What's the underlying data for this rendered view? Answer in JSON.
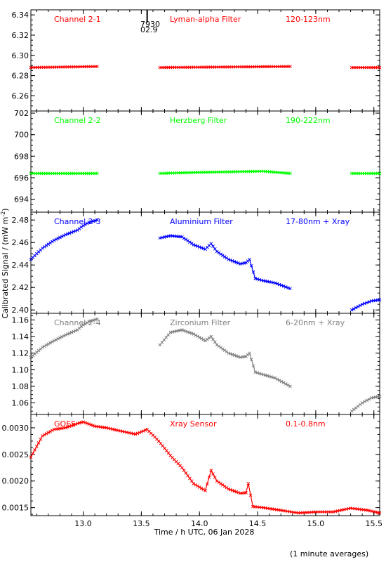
{
  "colors": {
    "red": "#ff0000",
    "green": "#00ff00",
    "blue": "#0000ff",
    "gray": "#808080",
    "axis": "#000000"
  },
  "figure": {
    "xlabel": "Time / h UTC, 06 Jan 2028",
    "ylabel": "Calibrated Signal / (mW m",
    "ylabel_sup": "-2",
    "ylabel_tail": ")",
    "footnote": "(1 minute averages)",
    "marker_labels": [
      "7930",
      "02.9"
    ]
  },
  "chart_data": {
    "type": "scatter",
    "xlim": [
      12.55,
      15.55
    ],
    "xticks": [
      13.0,
      13.5,
      14.0,
      14.5,
      15.0,
      15.5
    ],
    "xtick_labels": [
      "13.0",
      "13.5",
      "14.0",
      "14.5",
      "15.0",
      "15.5"
    ],
    "marker_x": 13.55,
    "panels": [
      {
        "name": "Channel 2-1",
        "filter": "Lyman-alpha Filter",
        "band": "120-123nm",
        "color": "red",
        "ylim": [
          6.245,
          6.345
        ],
        "yticks": [
          6.26,
          6.28,
          6.3,
          6.32,
          6.34
        ],
        "ytick_labels": [
          "6.26",
          "6.28",
          "6.30",
          "6.32",
          "6.34"
        ],
        "series": [
          {
            "x": [
              12.55,
              13.12
            ],
            "y": [
              6.288,
              6.289
            ]
          },
          {
            "x": [
              13.66,
              14.78
            ],
            "y": [
              6.288,
              6.289
            ]
          },
          {
            "x": [
              15.31,
              15.55
            ],
            "y": [
              6.288,
              6.288
            ]
          }
        ]
      },
      {
        "name": "Channel 2-2",
        "filter": "Herzberg Filter",
        "band": "190-222nm",
        "color": "green",
        "ylim": [
          692.8,
          702.2
        ],
        "yticks": [
          694,
          696,
          698,
          700,
          702
        ],
        "ytick_labels": [
          "694",
          "696",
          "698",
          "700",
          "702"
        ],
        "series": [
          {
            "x": [
              12.55,
              13.12
            ],
            "y": [
              696.4,
              696.4
            ]
          },
          {
            "x": [
              13.66,
              14.0,
              14.55,
              14.78
            ],
            "y": [
              696.4,
              696.5,
              696.6,
              696.4
            ]
          },
          {
            "x": [
              15.31,
              15.55
            ],
            "y": [
              696.4,
              696.4
            ]
          }
        ]
      },
      {
        "name": "Channel 2-3",
        "filter": "Aluminium Filter",
        "band": "17-80nm + Xray",
        "color": "blue",
        "ylim": [
          2.397,
          2.487
        ],
        "yticks": [
          2.4,
          2.42,
          2.44,
          2.46,
          2.48
        ],
        "ytick_labels": [
          "2.40",
          "2.42",
          "2.44",
          "2.46",
          "2.48"
        ],
        "series": [
          {
            "x": [
              12.55,
              12.65,
              12.75,
              12.85,
              12.95,
              13.0,
              13.05,
              13.12
            ],
            "y": [
              2.445,
              2.455,
              2.462,
              2.467,
              2.471,
              2.475,
              2.478,
              2.48
            ]
          },
          {
            "x": [
              13.66,
              13.75,
              13.85,
              13.95,
              14.05,
              14.1,
              14.15,
              14.25,
              14.35,
              14.4,
              14.43,
              14.48,
              14.55,
              14.65,
              14.78
            ],
            "y": [
              2.464,
              2.466,
              2.465,
              2.458,
              2.454,
              2.459,
              2.452,
              2.445,
              2.441,
              2.442,
              2.445,
              2.428,
              2.426,
              2.424,
              2.419
            ]
          },
          {
            "x": [
              15.31,
              15.4,
              15.48,
              15.55
            ],
            "y": [
              2.4,
              2.405,
              2.408,
              2.409
            ]
          }
        ]
      },
      {
        "name": "Channel 2-4",
        "filter": "Zirconium Filter",
        "band": "6-20nm + Xray",
        "color": "gray",
        "ylim": [
          1.046,
          1.168
        ],
        "yticks": [
          1.06,
          1.08,
          1.1,
          1.12,
          1.14,
          1.16
        ],
        "ytick_labels": [
          "1.06",
          "1.08",
          "1.10",
          "1.12",
          "1.14",
          "1.16"
        ],
        "series": [
          {
            "x": [
              12.55,
              12.65,
              12.75,
              12.85,
              12.95,
              13.0,
              13.05,
              13.12
            ],
            "y": [
              1.115,
              1.127,
              1.135,
              1.142,
              1.148,
              1.154,
              1.158,
              1.161
            ]
          },
          {
            "x": [
              13.66,
              13.75,
              13.85,
              13.95,
              14.05,
              14.1,
              14.15,
              14.25,
              14.35,
              14.4,
              14.43,
              14.48,
              14.55,
              14.65,
              14.78
            ],
            "y": [
              1.13,
              1.145,
              1.148,
              1.143,
              1.135,
              1.14,
              1.13,
              1.12,
              1.115,
              1.116,
              1.12,
              1.097,
              1.094,
              1.09,
              1.08
            ]
          },
          {
            "x": [
              15.31,
              15.4,
              15.48,
              15.55
            ],
            "y": [
              1.05,
              1.06,
              1.066,
              1.068
            ]
          }
        ]
      },
      {
        "name": "GOES",
        "filter": "Xray Sensor",
        "band": "0.1-0.8nm",
        "color": "red",
        "ylim": [
          0.00135,
          0.00325
        ],
        "yticks": [
          0.0015,
          0.002,
          0.0025,
          0.003
        ],
        "ytick_labels": [
          "0.0015",
          "0.0020",
          "0.0025",
          "0.0030"
        ],
        "series": [
          {
            "x": [
              12.55,
              12.65,
              12.75,
              12.85,
              12.95,
              13.0,
              13.1,
              13.2,
              13.3,
              13.45,
              13.55,
              13.65,
              13.75,
              13.85,
              13.95,
              14.05,
              14.1,
              14.15,
              14.25,
              14.35,
              14.4,
              14.42,
              14.46,
              14.55,
              14.7,
              14.85,
              15.0,
              15.15,
              15.3,
              15.45,
              15.55
            ],
            "y": [
              0.00245,
              0.00285,
              0.00297,
              0.003,
              0.00308,
              0.00311,
              0.00303,
              0.003,
              0.00295,
              0.00288,
              0.00297,
              0.00275,
              0.00248,
              0.00225,
              0.00195,
              0.00182,
              0.0022,
              0.002,
              0.00185,
              0.00177,
              0.00178,
              0.00195,
              0.00152,
              0.0015,
              0.00145,
              0.0014,
              0.00142,
              0.00142,
              0.00149,
              0.00145,
              0.0014
            ]
          }
        ]
      }
    ]
  }
}
